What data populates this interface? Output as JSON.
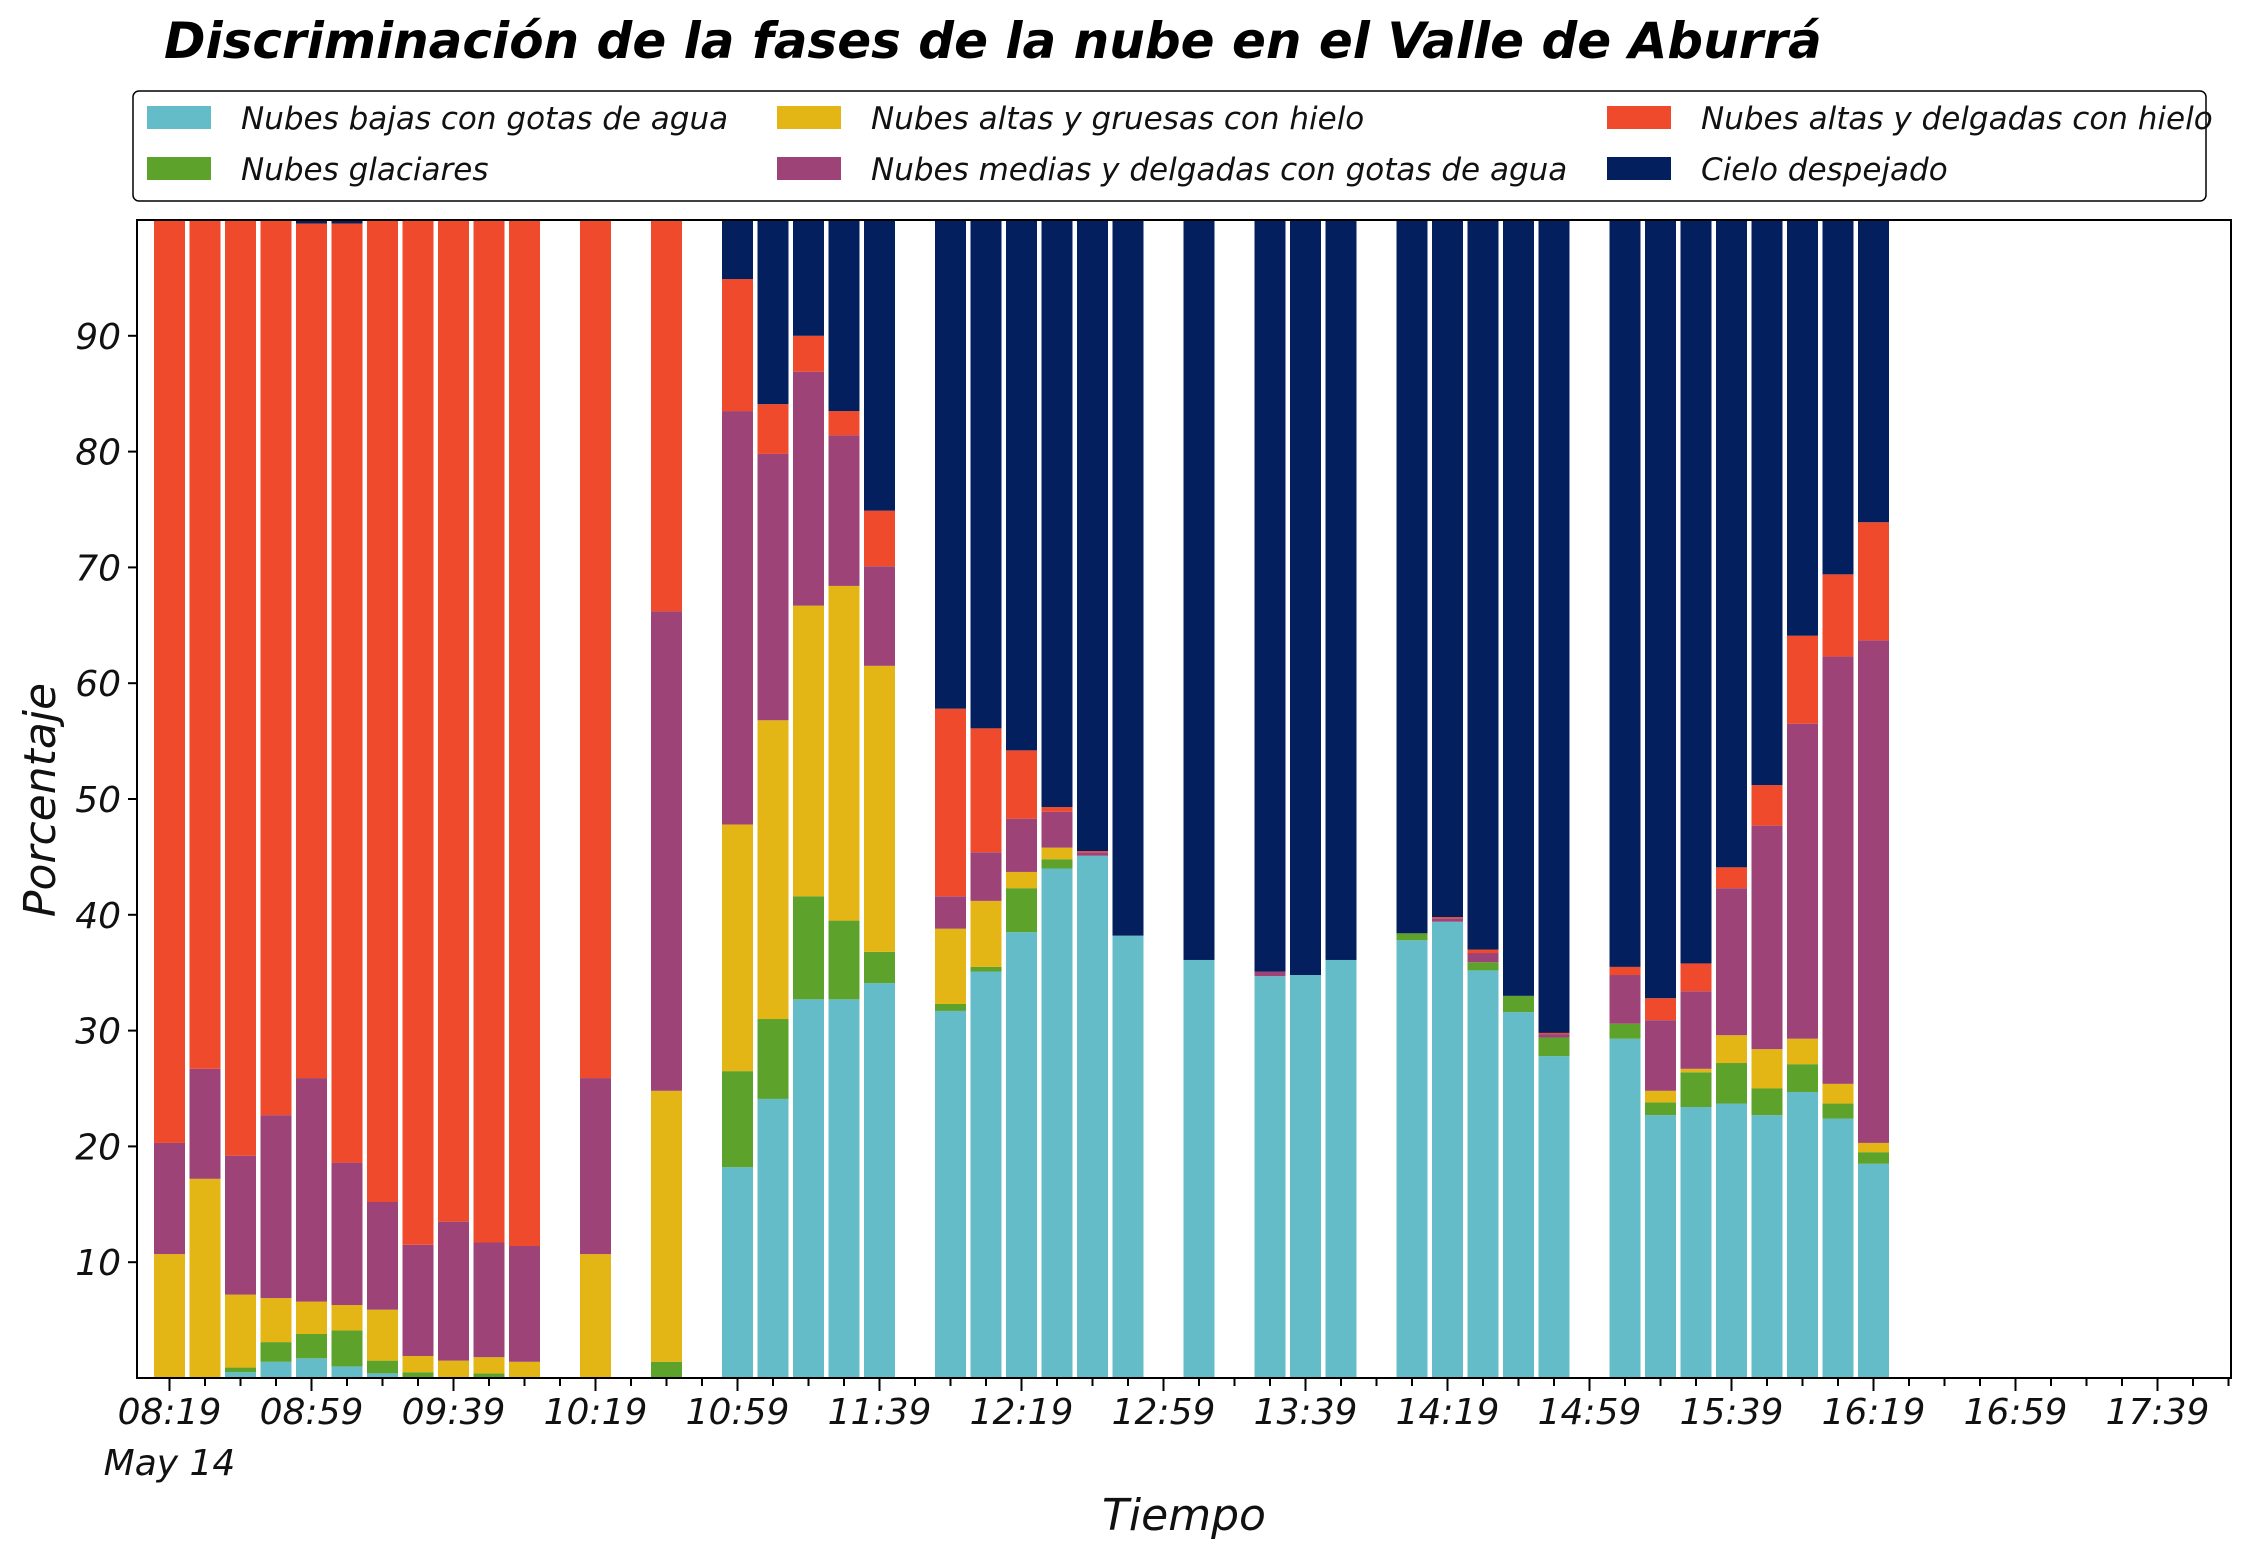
{
  "chart_data": {
    "type": "bar",
    "stacked": true,
    "title": "Discriminación de la fases de la nube en el Valle de Aburrá",
    "xlabel": "Tiempo",
    "ylabel": "Porcentaje",
    "ylim": [
      0,
      100
    ],
    "yticks": [
      10,
      20,
      30,
      40,
      50,
      60,
      70,
      80,
      90
    ],
    "legend_position": "top",
    "grid": false,
    "xtick_labels": [
      "08:19",
      "08:59",
      "09:39",
      "10:19",
      "10:59",
      "11:39",
      "12:19",
      "12:59",
      "13:39",
      "14:19",
      "14:59",
      "15:39",
      "16:19",
      "16:59",
      "17:39"
    ],
    "xtick_sublabel": "May 14",
    "x_slot_count": 60,
    "x_slot_minutes": 10,
    "series": [
      {
        "name": "Nubes bajas con gotas de agua",
        "color": "#64bcc8"
      },
      {
        "name": "Nubes glaciares",
        "color": "#5da22a"
      },
      {
        "name": "Nubes altas y gruesas con hielo",
        "color": "#e3b515"
      },
      {
        "name": "Nubes medias y delgadas con gotas de agua",
        "color": "#9e4378"
      },
      {
        "name": "Nubes altas y delgadas con hielo",
        "color": "#ee4a2b"
      },
      {
        "name": "Cielo despejado",
        "color": "#041f5d"
      }
    ],
    "bars": [
      {
        "x": "08:19",
        "values": [
          0,
          0,
          10.7,
          9.6,
          79.7,
          0
        ]
      },
      {
        "x": "08:29",
        "values": [
          0,
          0,
          17.2,
          9.5,
          73.3,
          0
        ]
      },
      {
        "x": "08:39",
        "values": [
          0.5,
          0.4,
          6.3,
          12.0,
          80.8,
          0
        ]
      },
      {
        "x": "08:49",
        "values": [
          1.4,
          1.7,
          3.8,
          15.8,
          77.3,
          0
        ]
      },
      {
        "x": "08:59",
        "values": [
          1.7,
          2.1,
          2.8,
          19.3,
          73.8,
          0.3
        ]
      },
      {
        "x": "09:09",
        "values": [
          1.0,
          3.1,
          2.2,
          12.3,
          81.1,
          0.3
        ]
      },
      {
        "x": "09:19",
        "values": [
          0.4,
          1.1,
          4.4,
          9.3,
          84.8,
          0
        ]
      },
      {
        "x": "09:29",
        "values": [
          0,
          0.5,
          1.4,
          9.6,
          88.5,
          0
        ]
      },
      {
        "x": "09:39",
        "values": [
          0,
          0,
          1.5,
          12.0,
          86.5,
          0
        ]
      },
      {
        "x": "09:49",
        "values": [
          0,
          0.4,
          1.4,
          9.9,
          88.3,
          0
        ]
      },
      {
        "x": "09:59",
        "values": [
          0,
          0,
          1.4,
          10.0,
          88.6,
          0
        ]
      },
      {
        "x": "10:09",
        "values": null
      },
      {
        "x": "10:19",
        "values": [
          0,
          0,
          10.7,
          15.2,
          74.1,
          0
        ]
      },
      {
        "x": "10:29",
        "values": null
      },
      {
        "x": "10:39",
        "values": [
          0,
          1.4,
          23.4,
          41.4,
          33.8,
          0
        ]
      },
      {
        "x": "10:49",
        "values": null
      },
      {
        "x": "10:59",
        "values": [
          18.2,
          8.3,
          21.3,
          35.7,
          11.4,
          5.1
        ]
      },
      {
        "x": "11:09",
        "values": [
          24.1,
          6.9,
          25.8,
          23.0,
          4.3,
          15.9
        ]
      },
      {
        "x": "11:19",
        "values": [
          32.7,
          8.9,
          25.1,
          20.2,
          3.1,
          10.0
        ]
      },
      {
        "x": "11:29",
        "values": [
          32.7,
          6.8,
          28.9,
          13.0,
          2.1,
          16.5
        ]
      },
      {
        "x": "11:39",
        "values": [
          34.1,
          2.7,
          24.7,
          8.6,
          4.8,
          25.1
        ]
      },
      {
        "x": "11:49",
        "values": null
      },
      {
        "x": "11:59",
        "values": [
          31.7,
          0.6,
          6.5,
          2.8,
          16.2,
          42.2
        ]
      },
      {
        "x": "12:09",
        "values": [
          35.1,
          0.4,
          5.7,
          4.2,
          10.7,
          43.9
        ]
      },
      {
        "x": "12:19",
        "values": [
          38.5,
          3.8,
          1.4,
          4.6,
          5.9,
          45.8
        ]
      },
      {
        "x": "12:29",
        "values": [
          44.0,
          0.8,
          1.0,
          3.1,
          0.4,
          50.7
        ]
      },
      {
        "x": "12:39",
        "values": [
          45.1,
          0,
          0,
          0.3,
          0.1,
          54.5
        ]
      },
      {
        "x": "12:49",
        "values": [
          38.2,
          0,
          0,
          0,
          0,
          61.8
        ]
      },
      {
        "x": "12:59",
        "values": null
      },
      {
        "x": "13:09",
        "values": [
          36.1,
          0,
          0,
          0,
          0,
          63.9
        ]
      },
      {
        "x": "13:19",
        "values": null
      },
      {
        "x": "13:29",
        "values": [
          34.7,
          0,
          0,
          0.4,
          0,
          64.9
        ]
      },
      {
        "x": "13:39",
        "values": [
          34.8,
          0,
          0,
          0,
          0,
          65.2
        ]
      },
      {
        "x": "13:49",
        "values": [
          36.1,
          0,
          0,
          0,
          0,
          63.9
        ]
      },
      {
        "x": "13:59",
        "values": null
      },
      {
        "x": "14:09",
        "values": [
          37.8,
          0.6,
          0,
          0,
          0,
          61.6
        ]
      },
      {
        "x": "14:19",
        "values": [
          39.4,
          0,
          0,
          0.3,
          0.1,
          60.2
        ]
      },
      {
        "x": "14:29",
        "values": [
          35.2,
          0.7,
          0,
          0.8,
          0.3,
          63.0
        ]
      },
      {
        "x": "14:39",
        "values": [
          31.6,
          1.4,
          0,
          0,
          0,
          67.0
        ]
      },
      {
        "x": "14:49",
        "values": [
          27.8,
          1.6,
          0,
          0.3,
          0.1,
          70.2
        ]
      },
      {
        "x": "14:59",
        "values": null
      },
      {
        "x": "15:09",
        "values": [
          29.3,
          1.3,
          0,
          4.2,
          0.7,
          64.5
        ]
      },
      {
        "x": "15:19",
        "values": [
          22.7,
          1.1,
          1.0,
          6.1,
          1.9,
          67.2
        ]
      },
      {
        "x": "15:29",
        "values": [
          23.4,
          3.0,
          0.3,
          6.7,
          2.4,
          64.2
        ]
      },
      {
        "x": "15:39",
        "values": [
          23.7,
          3.5,
          2.4,
          12.7,
          1.8,
          55.9
        ]
      },
      {
        "x": "15:49",
        "values": [
          22.7,
          2.3,
          3.4,
          19.3,
          3.5,
          48.8
        ]
      },
      {
        "x": "15:59",
        "values": [
          24.7,
          2.4,
          2.2,
          27.2,
          7.6,
          35.9
        ]
      },
      {
        "x": "16:09",
        "values": [
          22.4,
          1.3,
          1.7,
          36.9,
          7.1,
          30.6
        ]
      },
      {
        "x": "16:19",
        "values": [
          18.5,
          1.0,
          0.8,
          43.4,
          10.2,
          26.1
        ]
      }
    ]
  }
}
